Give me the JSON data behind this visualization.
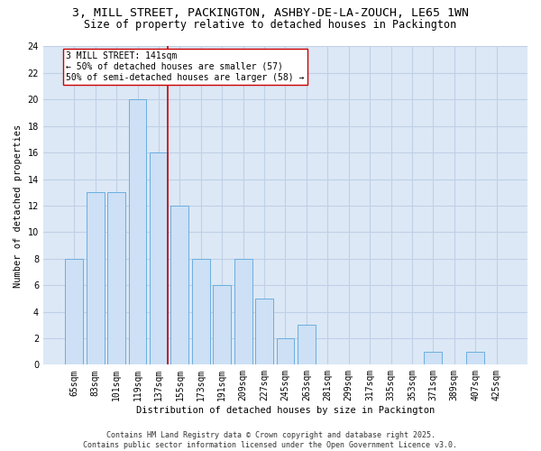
{
  "title1": "3, MILL STREET, PACKINGTON, ASHBY-DE-LA-ZOUCH, LE65 1WN",
  "title2": "Size of property relative to detached houses in Packington",
  "xlabel": "Distribution of detached houses by size in Packington",
  "ylabel": "Number of detached properties",
  "bar_labels": [
    "65sqm",
    "83sqm",
    "101sqm",
    "119sqm",
    "137sqm",
    "155sqm",
    "173sqm",
    "191sqm",
    "209sqm",
    "227sqm",
    "245sqm",
    "263sqm",
    "281sqm",
    "299sqm",
    "317sqm",
    "335sqm",
    "353sqm",
    "371sqm",
    "389sqm",
    "407sqm",
    "425sqm"
  ],
  "bar_values": [
    8,
    13,
    13,
    20,
    16,
    12,
    8,
    6,
    8,
    5,
    2,
    3,
    0,
    0,
    0,
    0,
    0,
    1,
    0,
    1,
    0
  ],
  "bar_color": "#cde0f5",
  "bar_edgecolor": "#6aaee0",
  "vline_color": "#cc0000",
  "annotation_text": "3 MILL STREET: 141sqm\n← 50% of detached houses are smaller (57)\n50% of semi-detached houses are larger (58) →",
  "annotation_box_edgecolor": "#cc0000",
  "ylim": [
    0,
    24
  ],
  "yticks": [
    0,
    2,
    4,
    6,
    8,
    10,
    12,
    14,
    16,
    18,
    20,
    22,
    24
  ],
  "grid_color": "#c0d0e8",
  "bg_color": "#dce8f5",
  "footer": "Contains HM Land Registry data © Crown copyright and database right 2025.\nContains public sector information licensed under the Open Government Licence v3.0.",
  "title_fontsize": 9.5,
  "subtitle_fontsize": 8.5,
  "axis_label_fontsize": 7.5,
  "tick_fontsize": 7,
  "annotation_fontsize": 7,
  "footer_fontsize": 6
}
